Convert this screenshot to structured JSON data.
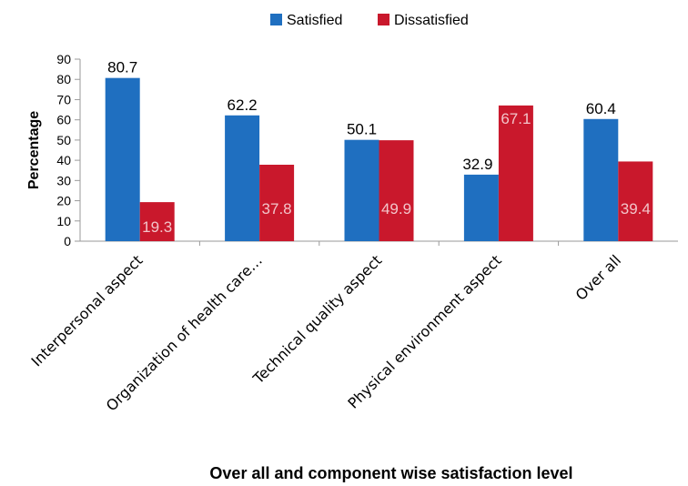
{
  "chart_data": {
    "type": "bar",
    "title": "Over all and component wise satisfaction level",
    "xlabel": "Over all and component wise satisfaction level",
    "ylabel": "Percentage",
    "categories": [
      "Interpersonal aspect",
      "Organization of health care…",
      "Technical quality aspect",
      "Physical environment aspect",
      "Over all"
    ],
    "series": [
      {
        "name": "Satisfied",
        "values": [
          80.7,
          62.2,
          50.1,
          32.9,
          60.4
        ],
        "color": "#1f6fc0",
        "label_color": "#000000"
      },
      {
        "name": "Dissatisfied",
        "values": [
          19.3,
          37.8,
          49.9,
          67.1,
          39.4
        ],
        "color": "#c9182c",
        "label_color": "#f2c4c9"
      }
    ],
    "ylim": [
      0,
      90
    ],
    "yticks": [
      "0",
      "10",
      "20",
      "30",
      "40",
      "50",
      "60",
      "70",
      "80",
      "90"
    ],
    "legend": "top-center",
    "grid": false
  }
}
